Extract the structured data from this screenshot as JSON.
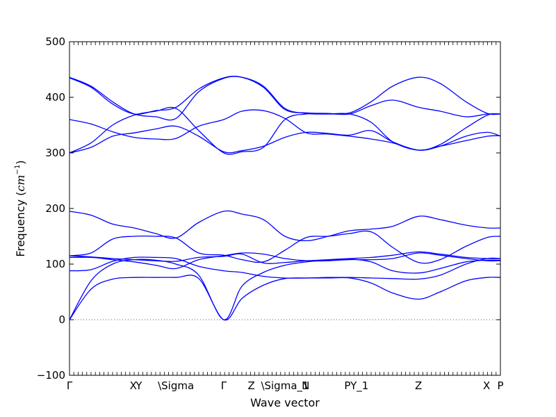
{
  "chart_data": {
    "type": "line",
    "title": "",
    "xlabel": "Wave vector",
    "ylabel_prefix": "Frequency (",
    "ylabel_math": "cm",
    "ylabel_exp": "−1",
    "ylabel_suffix": ")",
    "ylim": [
      -100,
      500
    ],
    "xlim": [
      0,
      1
    ],
    "y_ticks": [
      -100,
      0,
      100,
      200,
      300,
      400,
      500
    ],
    "zero_line": true,
    "grid": false,
    "legend": "none",
    "line_color": "#0000ff",
    "zero_line_color": "#555555",
    "x_ticks": [
      {
        "pos": 0.0,
        "label": "Γ"
      },
      {
        "pos": 0.148,
        "label": "X"
      },
      {
        "pos": 0.161,
        "label": "Y"
      },
      {
        "pos": 0.247,
        "label": "\\Sigma"
      },
      {
        "pos": 0.358,
        "label": "Γ"
      },
      {
        "pos": 0.422,
        "label": "Z"
      },
      {
        "pos": 0.5,
        "label": "\\Sigma_1"
      },
      {
        "pos": 0.548,
        "label": "N"
      },
      {
        "pos": 0.645,
        "label": "P"
      },
      {
        "pos": 0.673,
        "label": "Y_1"
      },
      {
        "pos": 0.81,
        "label": "Z"
      },
      {
        "pos": 0.968,
        "label": "X"
      },
      {
        "pos": 1.0,
        "label": "P"
      }
    ],
    "series": [
      {
        "x": [
          0,
          0.05,
          0.1,
          0.15,
          0.2,
          0.247,
          0.3,
          0.358,
          0.4,
          0.45,
          0.5,
          0.55,
          0.6,
          0.65,
          0.7,
          0.75,
          0.81,
          0.86,
          0.92,
          0.97,
          1.0
        ],
        "values": [
          0,
          55,
          73,
          76,
          76,
          76,
          74,
          0,
          38,
          62,
          74,
          75,
          75,
          75,
          66,
          48,
          37,
          50,
          70,
          76,
          76
        ]
      },
      {
        "x": [
          0,
          0.05,
          0.1,
          0.15,
          0.2,
          0.247,
          0.3,
          0.358,
          0.4,
          0.45,
          0.5,
          0.55,
          0.6,
          0.65,
          0.7,
          0.75,
          0.81,
          0.86,
          0.92,
          0.97,
          1.0
        ],
        "values": [
          0,
          70,
          100,
          108,
          107,
          100,
          80,
          0,
          60,
          85,
          98,
          104,
          107,
          109,
          104,
          88,
          84,
          92,
          104,
          107,
          107
        ]
      },
      {
        "x": [
          0,
          0.05,
          0.1,
          0.15,
          0.2,
          0.247,
          0.3,
          0.358,
          0.4,
          0.45,
          0.5,
          0.55,
          0.6,
          0.65,
          0.7,
          0.75,
          0.81,
          0.86,
          0.92,
          0.97,
          1.0
        ],
        "values": [
          88,
          90,
          105,
          112,
          112,
          110,
          96,
          88,
          85,
          78,
          75,
          75,
          76,
          76,
          75,
          74,
          73,
          80,
          100,
          110,
          110
        ]
      },
      {
        "x": [
          0,
          0.05,
          0.1,
          0.15,
          0.2,
          0.247,
          0.3,
          0.358,
          0.4,
          0.45,
          0.5,
          0.55,
          0.6,
          0.65,
          0.7,
          0.75,
          0.81,
          0.86,
          0.92,
          0.97,
          1.0
        ],
        "values": [
          112,
          112,
          108,
          104,
          98,
          92,
          108,
          115,
          120,
          118,
          110,
          106,
          106,
          108,
          108,
          110,
          120,
          116,
          110,
          106,
          106
        ]
      },
      {
        "x": [
          0,
          0.05,
          0.1,
          0.15,
          0.2,
          0.247,
          0.3,
          0.358,
          0.4,
          0.45,
          0.5,
          0.55,
          0.6,
          0.65,
          0.7,
          0.75,
          0.81,
          0.86,
          0.92,
          0.97,
          1.0
        ],
        "values": [
          115,
          113,
          110,
          108,
          106,
          105,
          112,
          114,
          118,
          102,
          103,
          106,
          108,
          110,
          112,
          116,
          122,
          118,
          112,
          110,
          110
        ]
      },
      {
        "x": [
          0,
          0.05,
          0.1,
          0.15,
          0.2,
          0.247,
          0.3,
          0.358,
          0.4,
          0.45,
          0.5,
          0.55,
          0.6,
          0.65,
          0.7,
          0.75,
          0.81,
          0.86,
          0.92,
          0.97,
          1.0
        ],
        "values": [
          115,
          120,
          145,
          150,
          150,
          147,
          120,
          116,
          108,
          104,
          125,
          148,
          150,
          155,
          158,
          130,
          103,
          108,
          132,
          148,
          150
        ]
      },
      {
        "x": [
          0,
          0.05,
          0.1,
          0.15,
          0.2,
          0.247,
          0.3,
          0.358,
          0.4,
          0.45,
          0.5,
          0.55,
          0.6,
          0.65,
          0.7,
          0.75,
          0.81,
          0.86,
          0.92,
          0.97,
          1.0
        ],
        "values": [
          195,
          188,
          172,
          165,
          155,
          147,
          175,
          195,
          190,
          180,
          150,
          142,
          150,
          160,
          163,
          168,
          186,
          180,
          170,
          165,
          165
        ]
      },
      {
        "x": [
          0,
          0.05,
          0.1,
          0.15,
          0.2,
          0.247,
          0.3,
          0.358,
          0.4,
          0.45,
          0.5,
          0.55,
          0.6,
          0.65,
          0.7,
          0.75,
          0.81,
          0.86,
          0.92,
          0.97,
          1.0
        ],
        "values": [
          300,
          310,
          330,
          336,
          343,
          348,
          330,
          302,
          304,
          312,
          328,
          337,
          335,
          332,
          340,
          320,
          305,
          312,
          330,
          337,
          330
        ]
      },
      {
        "x": [
          0,
          0.05,
          0.1,
          0.15,
          0.2,
          0.247,
          0.3,
          0.358,
          0.4,
          0.45,
          0.5,
          0.55,
          0.6,
          0.65,
          0.7,
          0.75,
          0.81,
          0.86,
          0.92,
          0.97,
          1.0
        ],
        "values": [
          300,
          318,
          350,
          368,
          375,
          380,
          340,
          300,
          302,
          310,
          360,
          370,
          370,
          370,
          355,
          320,
          305,
          315,
          345,
          368,
          370
        ]
      },
      {
        "x": [
          0,
          0.05,
          0.1,
          0.15,
          0.2,
          0.247,
          0.3,
          0.358,
          0.4,
          0.45,
          0.5,
          0.55,
          0.6,
          0.65,
          0.7,
          0.75,
          0.81,
          0.86,
          0.92,
          0.97,
          1.0
        ],
        "values": [
          360,
          352,
          338,
          328,
          325,
          326,
          348,
          360,
          375,
          376,
          362,
          336,
          334,
          330,
          325,
          318,
          305,
          312,
          322,
          330,
          331
        ]
      },
      {
        "x": [
          0,
          0.05,
          0.1,
          0.15,
          0.2,
          0.247,
          0.3,
          0.358,
          0.4,
          0.45,
          0.5,
          0.55,
          0.6,
          0.65,
          0.7,
          0.75,
          0.81,
          0.86,
          0.92,
          0.97,
          1.0
        ],
        "values": [
          436,
          420,
          392,
          370,
          365,
          362,
          410,
          434,
          436,
          420,
          380,
          371,
          370,
          372,
          392,
          420,
          436,
          425,
          392,
          371,
          370
        ]
      },
      {
        "x": [
          0,
          0.05,
          0.1,
          0.15,
          0.2,
          0.247,
          0.3,
          0.358,
          0.4,
          0.45,
          0.5,
          0.55,
          0.6,
          0.65,
          0.7,
          0.75,
          0.81,
          0.86,
          0.92,
          0.97,
          1.0
        ],
        "values": [
          435,
          418,
          388,
          370,
          376,
          382,
          415,
          435,
          436,
          418,
          378,
          372,
          371,
          370,
          385,
          395,
          382,
          375,
          365,
          370,
          370
        ]
      }
    ]
  }
}
